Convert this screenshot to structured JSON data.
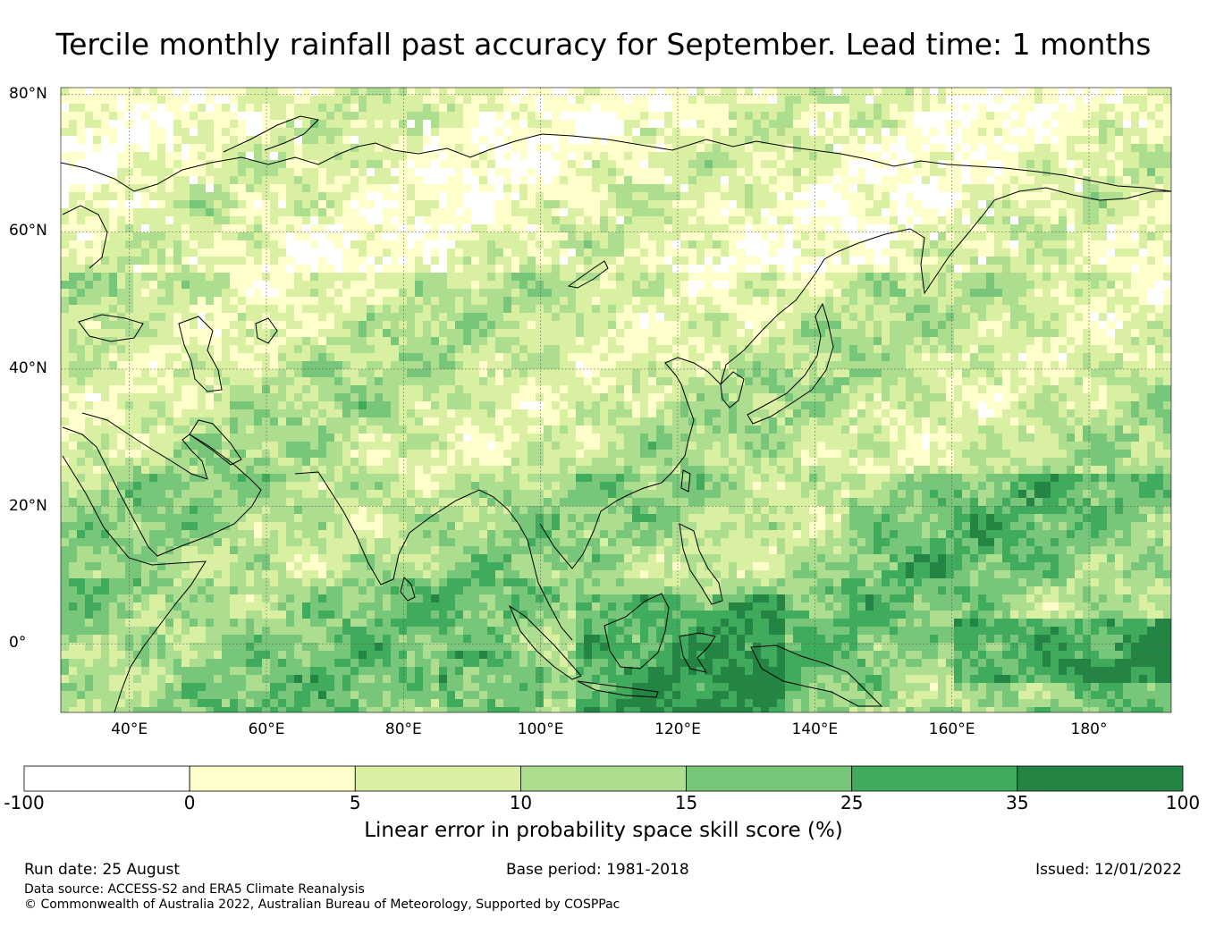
{
  "title": "Tercile monthly rainfall past accuracy for September. Lead time: 1 months",
  "map": {
    "lon_range": [
      30,
      192
    ],
    "lat_range": [
      -10,
      81
    ],
    "lat_labels": [
      {
        "lat": 80,
        "text": "80°N"
      },
      {
        "lat": 60,
        "text": "60°N"
      },
      {
        "lat": 40,
        "text": "40°N"
      },
      {
        "lat": 20,
        "text": "20°N"
      },
      {
        "lat": 0,
        "text": "0°"
      }
    ],
    "lon_labels": [
      {
        "lon": 40,
        "text": "40°E"
      },
      {
        "lon": 60,
        "text": "60°E"
      },
      {
        "lon": 80,
        "text": "80°E"
      },
      {
        "lon": 100,
        "text": "100°E"
      },
      {
        "lon": 120,
        "text": "120°E"
      },
      {
        "lon": 140,
        "text": "140°E"
      },
      {
        "lon": 160,
        "text": "160°E"
      },
      {
        "lon": 180,
        "text": "180°"
      }
    ]
  },
  "colorbar": {
    "label": "Linear error in probability space skill score (%)",
    "ticks": [
      "-100",
      "0",
      "5",
      "10",
      "15",
      "25",
      "35",
      "100"
    ],
    "colors": [
      "#ffffff",
      "#ffffcc",
      "#d9f0a3",
      "#addd8e",
      "#78c679",
      "#41ab5d",
      "#238443"
    ]
  },
  "footer": {
    "run_date": "Run date: 25 August",
    "base_period": "Base period: 1981-2018",
    "issued": "Issued: 12/01/2022",
    "data_source": "Data source: ACCESS-S2 and ERA5 Climate Reanalysis",
    "copyright": "© Commonwealth of Australia 2022, Australian Bureau of Meteorology, Supported by COSPPac"
  }
}
